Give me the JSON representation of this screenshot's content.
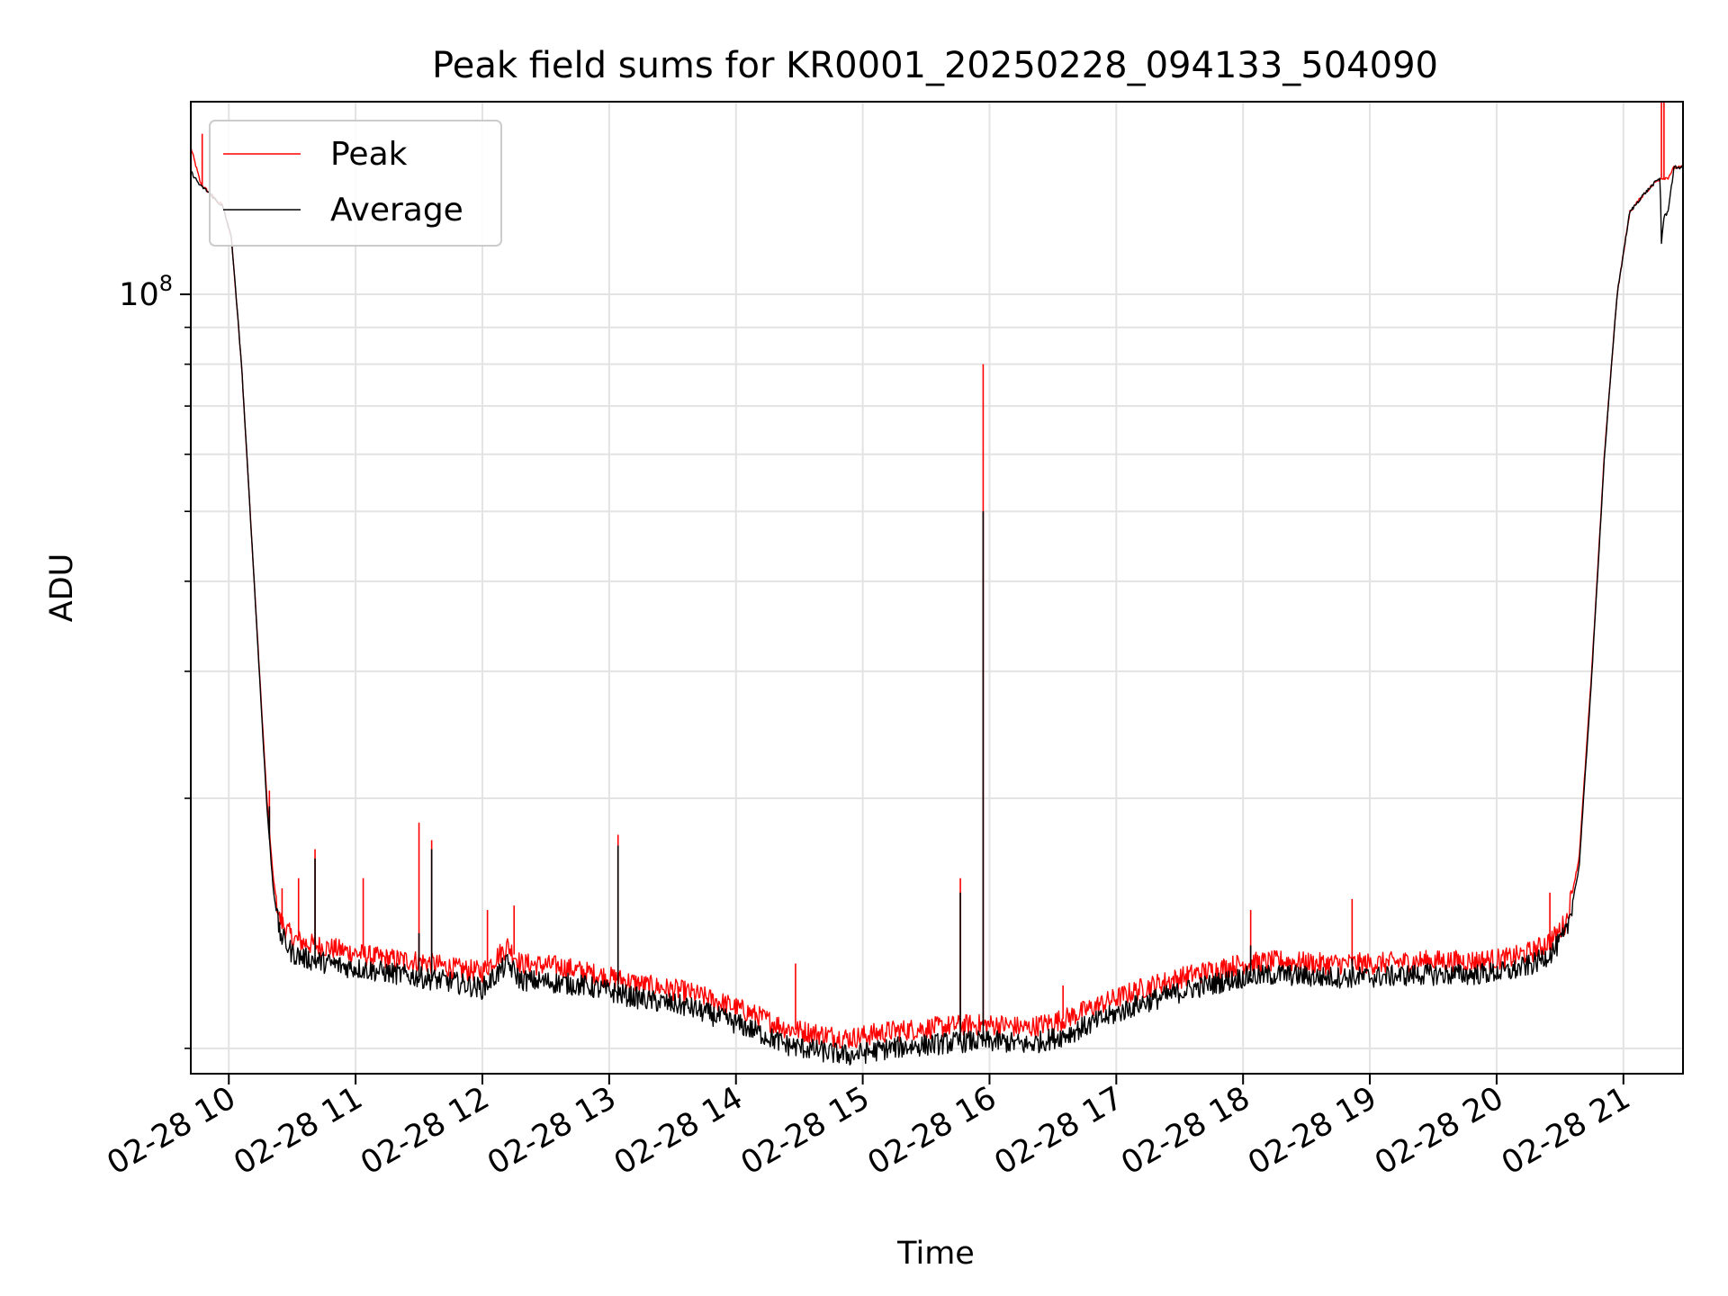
{
  "chart_data": {
    "type": "line",
    "title": "Peak field sums for KR0001_20250228_094133_504090",
    "xlabel": "Time",
    "ylabel": "ADU",
    "yscale": "log",
    "grid": true,
    "legend_position": "top-left",
    "x_unit": "hours since 02-28 00:00",
    "xlim": [
      9.7,
      21.47
    ],
    "ylim": [
      8300000,
      185000000
    ],
    "x_ticks": [
      {
        "value": 10,
        "label": "02-28 10"
      },
      {
        "value": 11,
        "label": "02-28 11"
      },
      {
        "value": 12,
        "label": "02-28 12"
      },
      {
        "value": 13,
        "label": "02-28 13"
      },
      {
        "value": 14,
        "label": "02-28 14"
      },
      {
        "value": 15,
        "label": "02-28 15"
      },
      {
        "value": 16,
        "label": "02-28 16"
      },
      {
        "value": 17,
        "label": "02-28 17"
      },
      {
        "value": 18,
        "label": "02-28 18"
      },
      {
        "value": 19,
        "label": "02-28 19"
      },
      {
        "value": 20,
        "label": "02-28 20"
      },
      {
        "value": 21,
        "label": "02-28 21"
      }
    ],
    "y_major_ticks": [
      {
        "value": 100000000,
        "label_base": "10",
        "label_exp": "8"
      }
    ],
    "y_minor_ticks": [
      9000000,
      20000000,
      30000000,
      40000000,
      50000000,
      60000000,
      70000000,
      80000000,
      90000000
    ],
    "series": [
      {
        "name": "Peak",
        "color": "#ff0000",
        "x": [
          9.7,
          9.78,
          9.8,
          9.85,
          9.9,
          9.95,
          10.02,
          10.1,
          10.2,
          10.3,
          10.35,
          10.4,
          10.5,
          10.6,
          10.7,
          10.9,
          11.2,
          11.5,
          11.8,
          12.0,
          12.2,
          12.3,
          12.6,
          12.8,
          13.0,
          13.3,
          13.6,
          13.9,
          14.1,
          14.4,
          14.7,
          14.9,
          15.2,
          15.5,
          15.8,
          16.1,
          16.3,
          16.6,
          16.9,
          17.2,
          17.6,
          18.0,
          18.3,
          18.6,
          19.0,
          19.4,
          19.8,
          20.1,
          20.3,
          20.45,
          20.55,
          20.65,
          20.75,
          20.85,
          20.95,
          21.05,
          21.15,
          21.25,
          21.3,
          21.35,
          21.4,
          21.47
        ],
        "y": [
          160000000,
          142000000,
          141000000,
          138000000,
          135000000,
          133000000,
          120000000,
          80000000,
          40000000,
          20000000,
          15500000,
          13600000,
          12800000,
          12600000,
          12500000,
          12300000,
          12000000,
          11900000,
          11600000,
          11500000,
          12500000,
          11800000,
          11700000,
          11500000,
          11300000,
          11000000,
          10800000,
          10400000,
          10100000,
          9600000,
          9400000,
          9300000,
          9500000,
          9600000,
          9700000,
          9700000,
          9600000,
          9900000,
          10400000,
          10900000,
          11400000,
          11800000,
          11900000,
          11800000,
          11800000,
          11900000,
          11900000,
          12000000,
          12300000,
          12800000,
          13500000,
          16500000,
          30000000,
          60000000,
          100000000,
          130000000,
          137000000,
          143000000,
          145000000,
          145000000,
          150000000,
          150000000
        ],
        "noise_band": 0.035,
        "spikes": [
          {
            "x": 9.79,
            "y": 167000000
          },
          {
            "x": 10.32,
            "y": 20500000
          },
          {
            "x": 10.42,
            "y": 15000000
          },
          {
            "x": 10.55,
            "y": 15500000
          },
          {
            "x": 10.68,
            "y": 17000000
          },
          {
            "x": 11.06,
            "y": 15500000
          },
          {
            "x": 11.5,
            "y": 18500000
          },
          {
            "x": 11.6,
            "y": 17500000
          },
          {
            "x": 12.04,
            "y": 14000000
          },
          {
            "x": 12.25,
            "y": 14200000
          },
          {
            "x": 13.07,
            "y": 17800000
          },
          {
            "x": 14.47,
            "y": 11800000
          },
          {
            "x": 15.77,
            "y": 15500000
          },
          {
            "x": 15.95,
            "y": 80000000
          },
          {
            "x": 16.58,
            "y": 11000000
          },
          {
            "x": 18.06,
            "y": 14000000
          },
          {
            "x": 18.86,
            "y": 14500000
          },
          {
            "x": 20.42,
            "y": 14800000
          },
          {
            "x": 21.3,
            "y": 185000000
          },
          {
            "x": 21.32,
            "y": 185000000
          }
        ]
      },
      {
        "name": "Average",
        "color": "#000000",
        "x": [
          9.7,
          9.78,
          9.8,
          9.85,
          9.9,
          9.95,
          10.02,
          10.1,
          10.2,
          10.3,
          10.35,
          10.4,
          10.5,
          10.6,
          10.7,
          10.9,
          11.2,
          11.5,
          11.8,
          12.0,
          12.2,
          12.3,
          12.6,
          12.8,
          13.0,
          13.3,
          13.6,
          13.9,
          14.1,
          14.4,
          14.7,
          14.9,
          15.2,
          15.5,
          15.8,
          16.1,
          16.3,
          16.6,
          16.9,
          17.2,
          17.6,
          18.0,
          18.3,
          18.6,
          19.0,
          19.4,
          19.8,
          20.1,
          20.3,
          20.45,
          20.55,
          20.65,
          20.75,
          20.85,
          20.95,
          21.05,
          21.15,
          21.25,
          21.29,
          21.3,
          21.32,
          21.35,
          21.4,
          21.47
        ],
        "y": [
          148000000,
          141000000,
          140500000,
          138000000,
          135000000,
          132500000,
          120000000,
          80000000,
          40000000,
          19500000,
          15000000,
          13000000,
          12200000,
          12000000,
          11900000,
          11700000,
          11500000,
          11300000,
          11100000,
          10900000,
          11800000,
          11200000,
          11100000,
          11000000,
          10800000,
          10500000,
          10300000,
          9900000,
          9600000,
          9100000,
          8900000,
          8800000,
          9000000,
          9100000,
          9200000,
          9200000,
          9100000,
          9400000,
          9900000,
          10400000,
          10900000,
          11300000,
          11400000,
          11300000,
          11300000,
          11400000,
          11400000,
          11500000,
          11800000,
          12300000,
          13000000,
          16000000,
          29500000,
          59500000,
          100000000,
          130000000,
          137000000,
          143000000,
          145000000,
          118000000,
          128000000,
          130000000,
          150000000,
          150000000
        ],
        "noise_band": 0.035,
        "spikes": [
          {
            "x": 10.32,
            "y": 19500000
          },
          {
            "x": 10.68,
            "y": 16500000
          },
          {
            "x": 11.5,
            "y": 13000000
          },
          {
            "x": 11.6,
            "y": 17000000
          },
          {
            "x": 13.07,
            "y": 17200000
          },
          {
            "x": 15.77,
            "y": 14800000
          },
          {
            "x": 15.95,
            "y": 50000000
          },
          {
            "x": 18.06,
            "y": 12500000
          },
          {
            "x": 18.86,
            "y": 12000000
          }
        ]
      }
    ]
  }
}
